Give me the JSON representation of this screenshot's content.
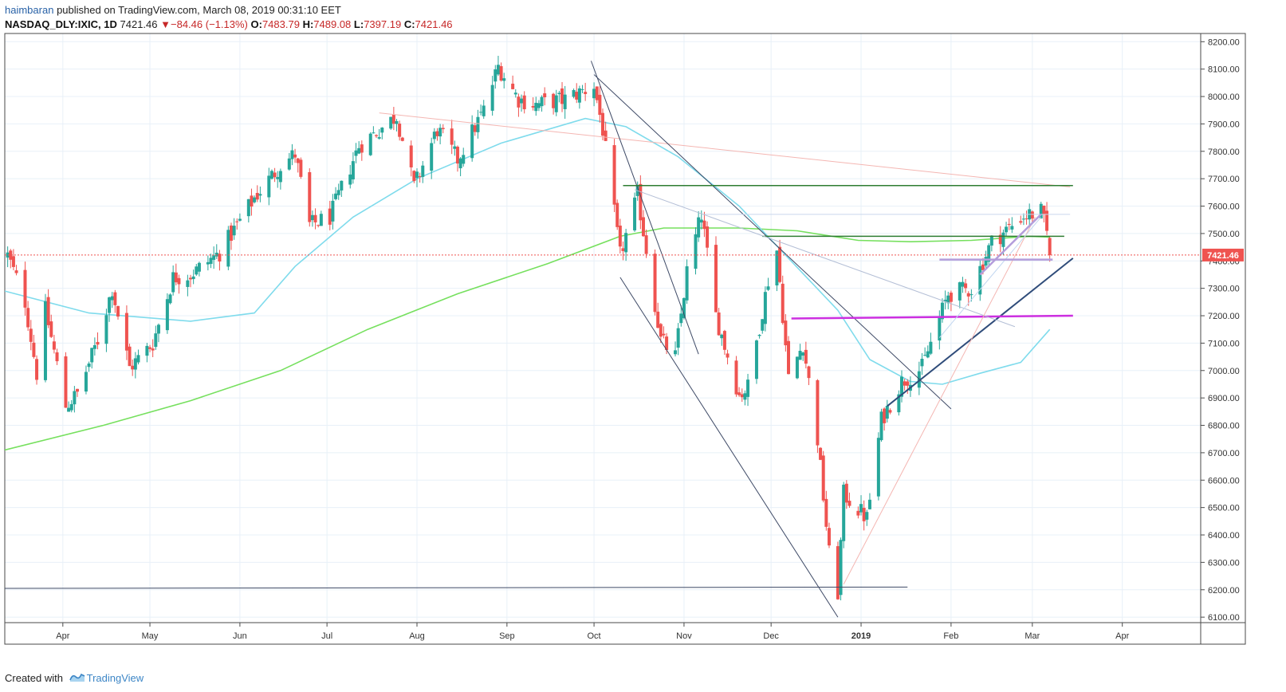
{
  "header": {
    "author": "haimbaran",
    "published_text": "published on TradingView.com, March 08, 2019 00:31:10 EET",
    "symbol": "NASDAQ_DLY:IXIC, 1D",
    "last": "7421.46",
    "change_arrow": "▼",
    "change": "−84.46 (−1.13%)",
    "open_label": "O:",
    "open": "7483.79",
    "high_label": "H:",
    "high": "7489.08",
    "low_label": "L:",
    "low": "7397.19",
    "close_label": "C:",
    "close": "7421.46"
  },
  "footer": {
    "created_with": "Created with",
    "brand": "TradingView",
    "logo_icon": "tradingview-logo-icon"
  },
  "colors": {
    "up": "#26a69a",
    "down": "#ef5350",
    "ma_short": "#7fdbec",
    "ma_long": "#76e05e",
    "last_price_badge": "#ef5350",
    "grid": "#e8f0f8",
    "axis_text": "#333333"
  },
  "chart_data": {
    "type": "candlestick",
    "symbol": "NASDAQ_DLY:IXIC",
    "interval": "1D",
    "last_price_label": "7421.46",
    "y_ticks": [
      8200,
      8100,
      8000,
      7900,
      7800,
      7700,
      7600,
      7500,
      7400,
      7300,
      7200,
      7100,
      7000,
      6900,
      6800,
      6700,
      6600,
      6500,
      6400,
      6300,
      6200,
      6100
    ],
    "y_tick_labels": [
      "8200.00",
      "8100.00",
      "8000.00",
      "7900.00",
      "7800.00",
      "7700.00",
      "7600.00",
      "7500.00",
      "7400.00",
      "7300.00",
      "7200.00",
      "7100.00",
      "7000.00",
      "6900.00",
      "6800.00",
      "6700.00",
      "6600.00",
      "6500.00",
      "6400.00",
      "6300.00",
      "6200.00",
      "6100.00"
    ],
    "ylim": [
      6080,
      8230
    ],
    "x_range": [
      "2018-03-12",
      "2019-04-28"
    ],
    "x_ticks": [
      {
        "label": "Apr",
        "date": "2018-04-01"
      },
      {
        "label": "May",
        "date": "2018-05-01"
      },
      {
        "label": "Jun",
        "date": "2018-06-01"
      },
      {
        "label": "Jul",
        "date": "2018-07-01"
      },
      {
        "label": "Aug",
        "date": "2018-08-01"
      },
      {
        "label": "Sep",
        "date": "2018-09-01"
      },
      {
        "label": "Oct",
        "date": "2018-10-01"
      },
      {
        "label": "Nov",
        "date": "2018-11-01"
      },
      {
        "label": "Dec",
        "date": "2018-12-01"
      },
      {
        "label": "2019",
        "date": "2019-01-01",
        "bold": true
      },
      {
        "label": "Feb",
        "date": "2019-02-01"
      },
      {
        "label": "Mar",
        "date": "2019-03-01"
      },
      {
        "label": "Apr",
        "date": "2019-04-01"
      }
    ],
    "grid": true,
    "anchors": [
      {
        "date": "2018-03-13",
        "close": 7420
      },
      {
        "date": "2018-03-19",
        "close": 7250
      },
      {
        "date": "2018-03-23",
        "close": 6990
      },
      {
        "date": "2018-03-26",
        "close": 7220
      },
      {
        "date": "2018-04-02",
        "close": 6870
      },
      {
        "date": "2018-04-06",
        "close": 6915
      },
      {
        "date": "2018-04-13",
        "close": 7110
      },
      {
        "date": "2018-04-18",
        "close": 7300
      },
      {
        "date": "2018-04-24",
        "close": 7010
      },
      {
        "date": "2018-05-02",
        "close": 7100
      },
      {
        "date": "2018-05-09",
        "close": 7340
      },
      {
        "date": "2018-05-15",
        "close": 7350
      },
      {
        "date": "2018-05-25",
        "close": 7430
      },
      {
        "date": "2018-06-06",
        "close": 7630
      },
      {
        "date": "2018-06-15",
        "close": 7750
      },
      {
        "date": "2018-06-20",
        "close": 7790
      },
      {
        "date": "2018-06-25",
        "close": 7530
      },
      {
        "date": "2018-07-02",
        "close": 7560
      },
      {
        "date": "2018-07-12",
        "close": 7820
      },
      {
        "date": "2018-07-25",
        "close": 7930
      },
      {
        "date": "2018-07-31",
        "close": 7670
      },
      {
        "date": "2018-08-08",
        "close": 7880
      },
      {
        "date": "2018-08-15",
        "close": 7770
      },
      {
        "date": "2018-08-24",
        "close": 7950
      },
      {
        "date": "2018-08-29",
        "close": 8110
      },
      {
        "date": "2018-09-05",
        "close": 7990
      },
      {
        "date": "2018-09-11",
        "close": 7970
      },
      {
        "date": "2018-09-21",
        "close": 7990
      },
      {
        "date": "2018-10-01",
        "close": 8040
      },
      {
        "date": "2018-10-04",
        "close": 7880
      },
      {
        "date": "2018-10-10",
        "close": 7420
      },
      {
        "date": "2018-10-16",
        "close": 7640
      },
      {
        "date": "2018-10-24",
        "close": 7110
      },
      {
        "date": "2018-10-29",
        "close": 7050
      },
      {
        "date": "2018-11-02",
        "close": 7360
      },
      {
        "date": "2018-11-07",
        "close": 7570
      },
      {
        "date": "2018-11-12",
        "close": 7200
      },
      {
        "date": "2018-11-20",
        "close": 6910
      },
      {
        "date": "2018-11-23",
        "close": 6940
      },
      {
        "date": "2018-11-30",
        "close": 7330
      },
      {
        "date": "2018-12-03",
        "close": 7440
      },
      {
        "date": "2018-12-07",
        "close": 6970
      },
      {
        "date": "2018-12-12",
        "close": 7100
      },
      {
        "date": "2018-12-17",
        "close": 6750
      },
      {
        "date": "2018-12-21",
        "close": 6330
      },
      {
        "date": "2018-12-24",
        "close": 6190
      },
      {
        "date": "2018-12-26",
        "close": 6550
      },
      {
        "date": "2019-01-03",
        "close": 6460
      },
      {
        "date": "2019-01-08",
        "close": 6820
      },
      {
        "date": "2019-01-15",
        "close": 6960
      },
      {
        "date": "2019-01-22",
        "close": 7010
      },
      {
        "date": "2019-01-31",
        "close": 7280
      },
      {
        "date": "2019-02-08",
        "close": 7300
      },
      {
        "date": "2019-02-15",
        "close": 7470
      },
      {
        "date": "2019-02-22",
        "close": 7530
      },
      {
        "date": "2019-02-25",
        "close": 7560
      },
      {
        "date": "2019-03-04",
        "close": 7580
      },
      {
        "date": "2019-03-06",
        "close": 7500
      },
      {
        "date": "2019-03-07",
        "close": 7421.46
      }
    ],
    "ma_50": [
      {
        "date": "2018-03-12",
        "value": 7290
      },
      {
        "date": "2018-04-10",
        "value": 7210
      },
      {
        "date": "2018-05-15",
        "value": 7180
      },
      {
        "date": "2018-06-06",
        "value": 7210
      },
      {
        "date": "2018-06-20",
        "value": 7380
      },
      {
        "date": "2018-07-10",
        "value": 7560
      },
      {
        "date": "2018-08-01",
        "value": 7700
      },
      {
        "date": "2018-08-30",
        "value": 7830
      },
      {
        "date": "2018-09-28",
        "value": 7920
      },
      {
        "date": "2018-10-12",
        "value": 7890
      },
      {
        "date": "2018-10-30",
        "value": 7780
      },
      {
        "date": "2018-11-20",
        "value": 7600
      },
      {
        "date": "2018-12-07",
        "value": 7410
      },
      {
        "date": "2018-12-24",
        "value": 7220
      },
      {
        "date": "2019-01-04",
        "value": 7040
      },
      {
        "date": "2019-01-18",
        "value": 6960
      },
      {
        "date": "2019-01-29",
        "value": 6950
      },
      {
        "date": "2019-02-11",
        "value": 6990
      },
      {
        "date": "2019-02-25",
        "value": 7030
      },
      {
        "date": "2019-03-07",
        "value": 7150
      }
    ],
    "ma_200": [
      {
        "date": "2018-03-12",
        "value": 6710
      },
      {
        "date": "2018-04-15",
        "value": 6800
      },
      {
        "date": "2018-05-15",
        "value": 6890
      },
      {
        "date": "2018-06-15",
        "value": 7000
      },
      {
        "date": "2018-07-15",
        "value": 7150
      },
      {
        "date": "2018-08-15",
        "value": 7280
      },
      {
        "date": "2018-09-15",
        "value": 7390
      },
      {
        "date": "2018-10-10",
        "value": 7490
      },
      {
        "date": "2018-10-25",
        "value": 7520
      },
      {
        "date": "2018-11-20",
        "value": 7520
      },
      {
        "date": "2018-12-10",
        "value": 7510
      },
      {
        "date": "2018-12-31",
        "value": 7475
      },
      {
        "date": "2019-01-18",
        "value": 7470
      },
      {
        "date": "2019-02-08",
        "value": 7475
      },
      {
        "date": "2019-02-28",
        "value": 7490
      },
      {
        "date": "2019-03-07",
        "value": 7487
      }
    ],
    "drawings": [
      {
        "kind": "line",
        "color": "#f4b6b2",
        "width": 1,
        "from": [
          "2018-07-19",
          7940
        ],
        "to": [
          "2019-03-14",
          7670
        ]
      },
      {
        "kind": "line",
        "color": "#3e4a66",
        "width": 1,
        "from": [
          "2018-09-30",
          8130
        ],
        "to": [
          "2018-11-06",
          7060
        ]
      },
      {
        "kind": "line",
        "color": "#3e4a66",
        "width": 1,
        "from": [
          "2018-10-01",
          8080
        ],
        "to": [
          "2019-02-01",
          6860
        ]
      },
      {
        "kind": "line",
        "color": "#3e4a66",
        "width": 1,
        "from": [
          "2018-10-10",
          7340
        ],
        "to": [
          "2018-12-24",
          6100
        ]
      },
      {
        "kind": "line",
        "color": "#3e4a66",
        "width": 1,
        "from": [
          "2018-03-12",
          6205
        ],
        "to": [
          "2019-01-17",
          6210
        ]
      },
      {
        "kind": "line",
        "color": "#2f4c7a",
        "width": 2,
        "from": [
          "2019-01-10",
          6870
        ],
        "to": [
          "2019-03-15",
          7410
        ]
      },
      {
        "kind": "line",
        "color": "#cc2fe0",
        "width": 2.5,
        "from": [
          "2018-12-08",
          7190
        ],
        "to": [
          "2019-03-15",
          7200
        ]
      },
      {
        "kind": "line",
        "color": "#2e7d32",
        "width": 1.5,
        "from": [
          "2018-10-11",
          7675
        ],
        "to": [
          "2019-03-15",
          7675
        ]
      },
      {
        "kind": "line",
        "color": "#2e7d32",
        "width": 1.5,
        "from": [
          "2018-11-28",
          7490
        ],
        "to": [
          "2019-03-12",
          7490
        ]
      },
      {
        "kind": "line",
        "color": "#c9d6ec",
        "width": 1,
        "from": [
          "2018-11-08",
          7570
        ],
        "to": [
          "2019-03-14",
          7570
        ]
      },
      {
        "kind": "line",
        "color": "#b4bfd6",
        "width": 1,
        "from": [
          "2018-10-15",
          7660
        ],
        "to": [
          "2019-02-23",
          7160
        ]
      },
      {
        "kind": "line",
        "color": "#f4b6b2",
        "width": 1,
        "from": [
          "2018-12-26",
          6220
        ],
        "to": [
          "2019-03-02",
          7560
        ]
      },
      {
        "kind": "line",
        "color": "#c1d6f0",
        "width": 1,
        "from": [
          "2019-01-28",
          7120
        ],
        "to": [
          "2019-03-04",
          7560
        ]
      },
      {
        "kind": "line",
        "color": "#b39ddb",
        "width": 2.5,
        "from": [
          "2019-01-28",
          7405
        ],
        "to": [
          "2019-03-08",
          7405
        ]
      },
      {
        "kind": "line",
        "color": "#b39ddb",
        "width": 2.5,
        "from": [
          "2019-02-11",
          7350
        ],
        "to": [
          "2019-03-04",
          7570
        ]
      },
      {
        "kind": "hline-dotted",
        "color": "#ef5350",
        "width": 1,
        "value": 7421.46
      }
    ]
  }
}
